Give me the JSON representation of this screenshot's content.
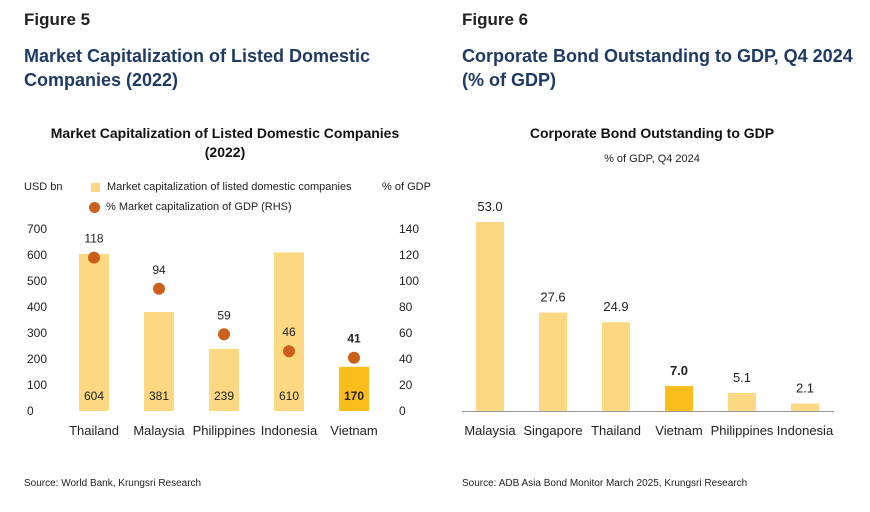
{
  "figure5": {
    "label": "Figure 5",
    "title_lines": [
      "Market Capitalization of Listed Domestic",
      "Companies (2022)"
    ],
    "source": "Source: World Bank, Krungsri Research"
  },
  "figure6": {
    "label": "Figure 6",
    "title_lines": [
      "Corporate Bond Outstanding to GDP, Q4 2024",
      "(% of GDP)"
    ],
    "source": "Source: ADB Asia Bond Monitor March 2025, Krungsri Research"
  },
  "colors": {
    "bar": "#fdd882",
    "bar_highlight": "#fbbd1c",
    "dot": "#cd5f1c",
    "axis_line": "#999999",
    "title_blue": "#1f3b63"
  },
  "chart_data": [
    {
      "type": "bar",
      "title_lines": [
        "Market Capitalization of Listed Domestic Companies",
        "(2022)"
      ],
      "categories": [
        "Thailand",
        "Malaysia",
        "Philippines",
        "Indonesia",
        "Vietnam"
      ],
      "series": [
        {
          "name": "Market capitalization of listed domestic companies",
          "values": [
            604,
            381,
            239,
            610,
            170
          ],
          "value_labels": [
            "604",
            "381",
            "239",
            "610",
            "170"
          ],
          "axis": "left",
          "highlight_index": 4
        },
        {
          "name": "% Market capitalization of GDP (RHS)",
          "values": [
            118,
            94,
            59,
            46,
            41
          ],
          "value_labels": [
            "118",
            "94",
            "59",
            "46",
            "41"
          ],
          "axis": "right",
          "marker": "circle",
          "highlight_index": 4
        }
      ],
      "y_left": {
        "unit_label": "USD bn",
        "ylim": [
          0,
          700
        ],
        "ticks": [
          "0",
          "100",
          "200",
          "300",
          "400",
          "500",
          "600",
          "700"
        ]
      },
      "y_right": {
        "unit_label": "% of GDP",
        "ylim": [
          0,
          140
        ],
        "ticks": [
          "0",
          "20",
          "40",
          "60",
          "80",
          "100",
          "120",
          "140"
        ]
      },
      "legend_position": "top",
      "grid": false
    },
    {
      "type": "bar",
      "title": "Corporate Bond Outstanding to GDP",
      "subtitle": "% of GDP, Q4 2024",
      "categories": [
        "Malaysia",
        "Singapore",
        "Thailand",
        "Vietnam",
        "Philippines",
        "Indonesia"
      ],
      "values": [
        53.0,
        27.6,
        24.9,
        7.0,
        5.1,
        2.1
      ],
      "value_labels": [
        "53.0",
        "27.6",
        "24.9",
        "7.0",
        "5.1",
        "2.1"
      ],
      "highlight_index": 3,
      "ylim": [
        0,
        53
      ],
      "y_axis_visible": false,
      "grid": false
    }
  ]
}
